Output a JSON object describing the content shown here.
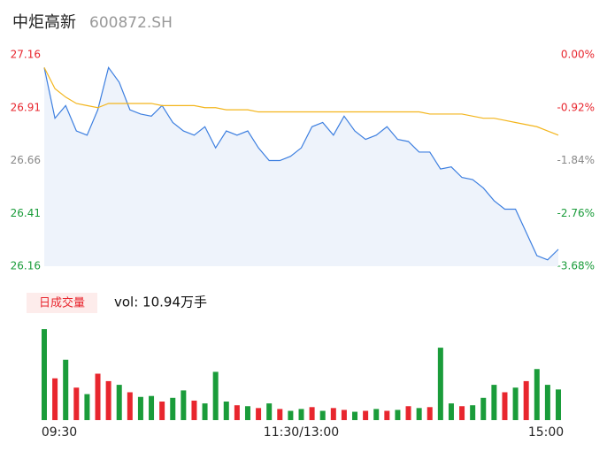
{
  "header": {
    "title": "中炬高新",
    "code": "600872.SH"
  },
  "chart_data": [
    {
      "type": "line",
      "series": [
        {
          "color": "#3d7fe0",
          "area": true,
          "values": [
            27.1,
            26.86,
            26.92,
            26.8,
            26.78,
            26.9,
            27.1,
            27.03,
            26.9,
            26.88,
            26.87,
            26.92,
            26.84,
            26.8,
            26.78,
            26.82,
            26.72,
            26.8,
            26.78,
            26.8,
            26.72,
            26.66,
            26.66,
            26.68,
            26.72,
            26.82,
            26.84,
            26.78,
            26.87,
            26.8,
            26.76,
            26.78,
            26.82,
            26.76,
            26.75,
            26.7,
            26.7,
            26.62,
            26.63,
            26.58,
            26.57,
            26.53,
            26.47,
            26.43,
            26.43,
            26.32,
            26.21,
            26.19,
            26.24
          ]
        },
        {
          "color": "#f3b51c",
          "values": [
            27.1,
            27.0,
            26.96,
            26.93,
            26.92,
            26.91,
            26.93,
            26.93,
            26.93,
            26.93,
            26.93,
            26.92,
            26.92,
            26.92,
            26.92,
            26.91,
            26.91,
            26.9,
            26.9,
            26.9,
            26.89,
            26.89,
            26.89,
            26.89,
            26.89,
            26.89,
            26.89,
            26.89,
            26.89,
            26.89,
            26.89,
            26.89,
            26.89,
            26.89,
            26.89,
            26.89,
            26.88,
            26.88,
            26.88,
            26.88,
            26.87,
            26.86,
            26.86,
            26.85,
            26.84,
            26.83,
            26.82,
            26.8,
            26.78
          ]
        }
      ],
      "ylim": [
        26.16,
        27.16
      ],
      "yticks": [
        27.16,
        26.91,
        26.66,
        26.41,
        26.16
      ],
      "ytick_colors": [
        "#e8262e",
        "#e8262e",
        "#888888",
        "#1a9c3a",
        "#1a9c3a"
      ],
      "y2lim": [
        -3.68,
        0
      ],
      "y2ticks": [
        {
          "value": 0,
          "label": "0.00%"
        },
        {
          "value": -0.92,
          "label": "-0.92%"
        },
        {
          "value": -1.84,
          "label": "-1.84%"
        },
        {
          "value": -2.76,
          "label": "-2.76%"
        },
        {
          "value": -3.68,
          "label": "-3.68%"
        }
      ]
    },
    {
      "type": "bar",
      "legend": "日成交量",
      "annotation": "vol: 10.94万手",
      "categories": [
        "09:30",
        null,
        null,
        null,
        null,
        null,
        null,
        null,
        null,
        null,
        null,
        null,
        null,
        null,
        null,
        null,
        null,
        null,
        null,
        null,
        null,
        null,
        null,
        null,
        "11:30/13:00",
        null,
        null,
        null,
        null,
        null,
        null,
        null,
        null,
        null,
        null,
        null,
        null,
        null,
        null,
        null,
        null,
        null,
        null,
        null,
        null,
        null,
        null,
        null,
        "15:00"
      ],
      "values": [
        9800,
        4500,
        6500,
        3500,
        2800,
        5000,
        4200,
        3800,
        3000,
        2500,
        2600,
        2000,
        2400,
        3200,
        2100,
        1800,
        5200,
        2000,
        1600,
        1500,
        1300,
        1800,
        1200,
        1000,
        1200,
        1400,
        1000,
        1300,
        1100,
        900,
        1000,
        1200,
        1000,
        1100,
        1500,
        1300,
        1400,
        7800,
        1800,
        1500,
        1600,
        2400,
        3800,
        3000,
        3500,
        4200,
        5500,
        3800,
        3300
      ],
      "colors": [
        "#1a9c3a",
        "#e8262e",
        "#1a9c3a",
        "#e8262e",
        "#1a9c3a",
        "#e8262e",
        "#e8262e",
        "#1a9c3a",
        "#e8262e",
        "#1a9c3a",
        "#1a9c3a",
        "#e8262e",
        "#1a9c3a",
        "#1a9c3a",
        "#e8262e",
        "#1a9c3a",
        "#1a9c3a",
        "#1a9c3a",
        "#e8262e",
        "#1a9c3a",
        "#e8262e",
        "#1a9c3a",
        "#e8262e",
        "#1a9c3a",
        "#1a9c3a",
        "#e8262e",
        "#1a9c3a",
        "#e8262e",
        "#e8262e",
        "#1a9c3a",
        "#e8262e",
        "#1a9c3a",
        "#e8262e",
        "#1a9c3a",
        "#e8262e",
        "#1a9c3a",
        "#e8262e",
        "#1a9c3a",
        "#1a9c3a",
        "#e8262e",
        "#1a9c3a",
        "#1a9c3a",
        "#1a9c3a",
        "#e8262e",
        "#1a9c3a",
        "#e8262e",
        "#1a9c3a",
        "#1a9c3a",
        "#1a9c3a"
      ],
      "ylim": [
        0,
        10000
      ]
    }
  ]
}
